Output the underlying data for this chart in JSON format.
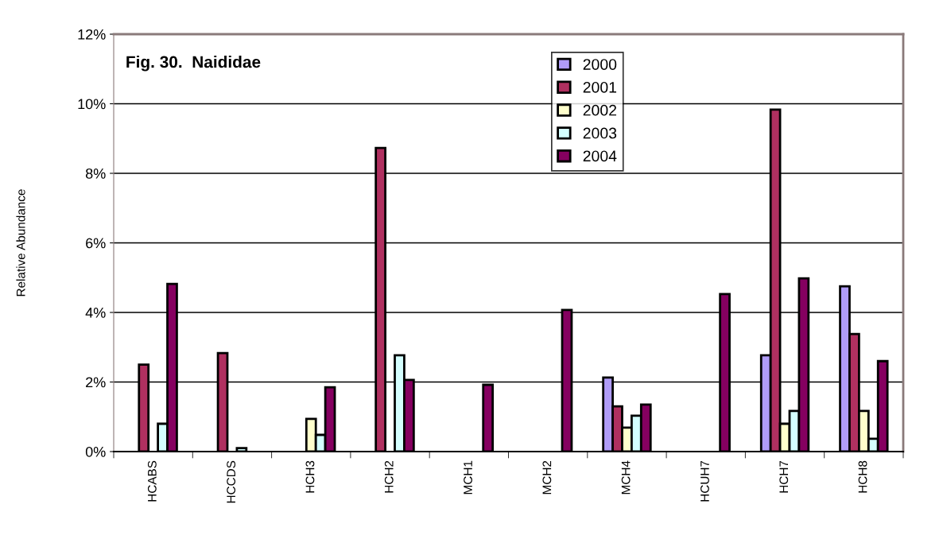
{
  "chart_data": {
    "type": "bar",
    "title": "Fig. 30.  Naididae",
    "ylabel": "Relative Abundance",
    "categories": [
      "HCABS",
      "HCCDS",
      "HCH3",
      "HCH2",
      "MCH1",
      "MCH2",
      "MCH4",
      "HCUH7",
      "HCH7",
      "HCH8"
    ],
    "series": [
      {
        "name": "2000",
        "color": "#b09cf8",
        "values": [
          null,
          null,
          null,
          null,
          null,
          null,
          2.13,
          null,
          2.77,
          4.75
        ]
      },
      {
        "name": "2001",
        "color": "#b03060",
        "values": [
          2.5,
          2.83,
          null,
          8.73,
          null,
          null,
          1.3,
          null,
          9.83,
          3.38
        ]
      },
      {
        "name": "2002",
        "color": "#ffffcc",
        "values": [
          null,
          null,
          0.94,
          null,
          null,
          null,
          0.69,
          null,
          0.8,
          1.17
        ]
      },
      {
        "name": "2003",
        "color": "#d4ffff",
        "values": [
          0.8,
          0.1,
          0.48,
          2.77,
          null,
          null,
          1.03,
          null,
          1.17,
          0.37
        ]
      },
      {
        "name": "2004",
        "color": "#850060",
        "values": [
          4.82,
          null,
          1.85,
          2.06,
          1.92,
          4.07,
          1.35,
          4.53,
          4.98,
          2.6
        ]
      }
    ],
    "ylim": [
      0,
      12
    ],
    "yticks": [
      {
        "value": 0,
        "label": "0%"
      },
      {
        "value": 2,
        "label": "2%"
      },
      {
        "value": 4,
        "label": "4%"
      },
      {
        "value": 6,
        "label": "6%"
      },
      {
        "value": 8,
        "label": "8%"
      },
      {
        "value": 10,
        "label": "10%"
      },
      {
        "value": 12,
        "label": "12%"
      }
    ],
    "grid": "y",
    "legend": "top"
  }
}
